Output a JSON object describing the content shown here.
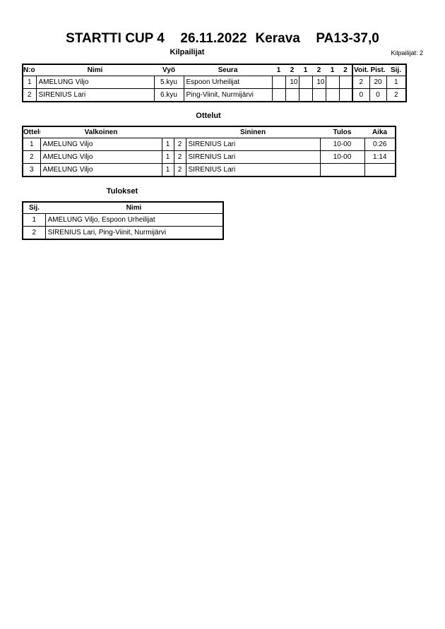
{
  "header": {
    "event": "STARTTI CUP 4",
    "date": "26.11.2022",
    "place": "Kerava",
    "category": "PA13-37,0"
  },
  "competitors": {
    "title": "Kilpailijat",
    "count_label": "Kilpailijat: 2",
    "columns": [
      "N:o",
      "Nimi",
      "Vyö",
      "Seura",
      "1",
      "2",
      "1",
      "2",
      "1",
      "2",
      "Voit.",
      "Pist.",
      "Sij."
    ],
    "rows": [
      {
        "no": "1",
        "name": "AMELUNG Viljo",
        "belt": "5.kyu",
        "club": "Espoon Urheilijat",
        "s": [
          "",
          "10",
          "",
          "10",
          "",
          ""
        ],
        "wins": "2",
        "points": "20",
        "rank": "1"
      },
      {
        "no": "2",
        "name": "SIRENIUS Lari",
        "belt": "6.kyu",
        "club": "Ping-Viinit, Nurmijärvi",
        "s": [
          "",
          "",
          "",
          "",
          "",
          ""
        ],
        "wins": "0",
        "points": "0",
        "rank": "2"
      }
    ]
  },
  "matches": {
    "title": "Ottelut",
    "columns": [
      "Ottelu",
      "Valkoinen",
      "Sininen",
      "Tulos",
      "Aika"
    ],
    "rows": [
      {
        "no": "1",
        "white": "AMELUNG Viljo",
        "wn": "1",
        "bn": "2",
        "blue": "SIRENIUS Lari",
        "result": "10-00",
        "time": "0:26"
      },
      {
        "no": "2",
        "white": "AMELUNG Viljo",
        "wn": "1",
        "bn": "2",
        "blue": "SIRENIUS Lari",
        "result": "10-00",
        "time": "1:14"
      },
      {
        "no": "3",
        "white": "AMELUNG Viljo",
        "wn": "1",
        "bn": "2",
        "blue": "SIRENIUS Lari",
        "result": "",
        "time": ""
      }
    ]
  },
  "results": {
    "title": "Tulokset",
    "columns": [
      "Sij.",
      "Nimi"
    ],
    "rows": [
      {
        "rank": "1",
        "name": "AMELUNG Viljo, Espoon Urheilijat"
      },
      {
        "rank": "2",
        "name": "SIRENIUS Lari, Ping-Viinit, Nurmijärvi"
      }
    ]
  }
}
